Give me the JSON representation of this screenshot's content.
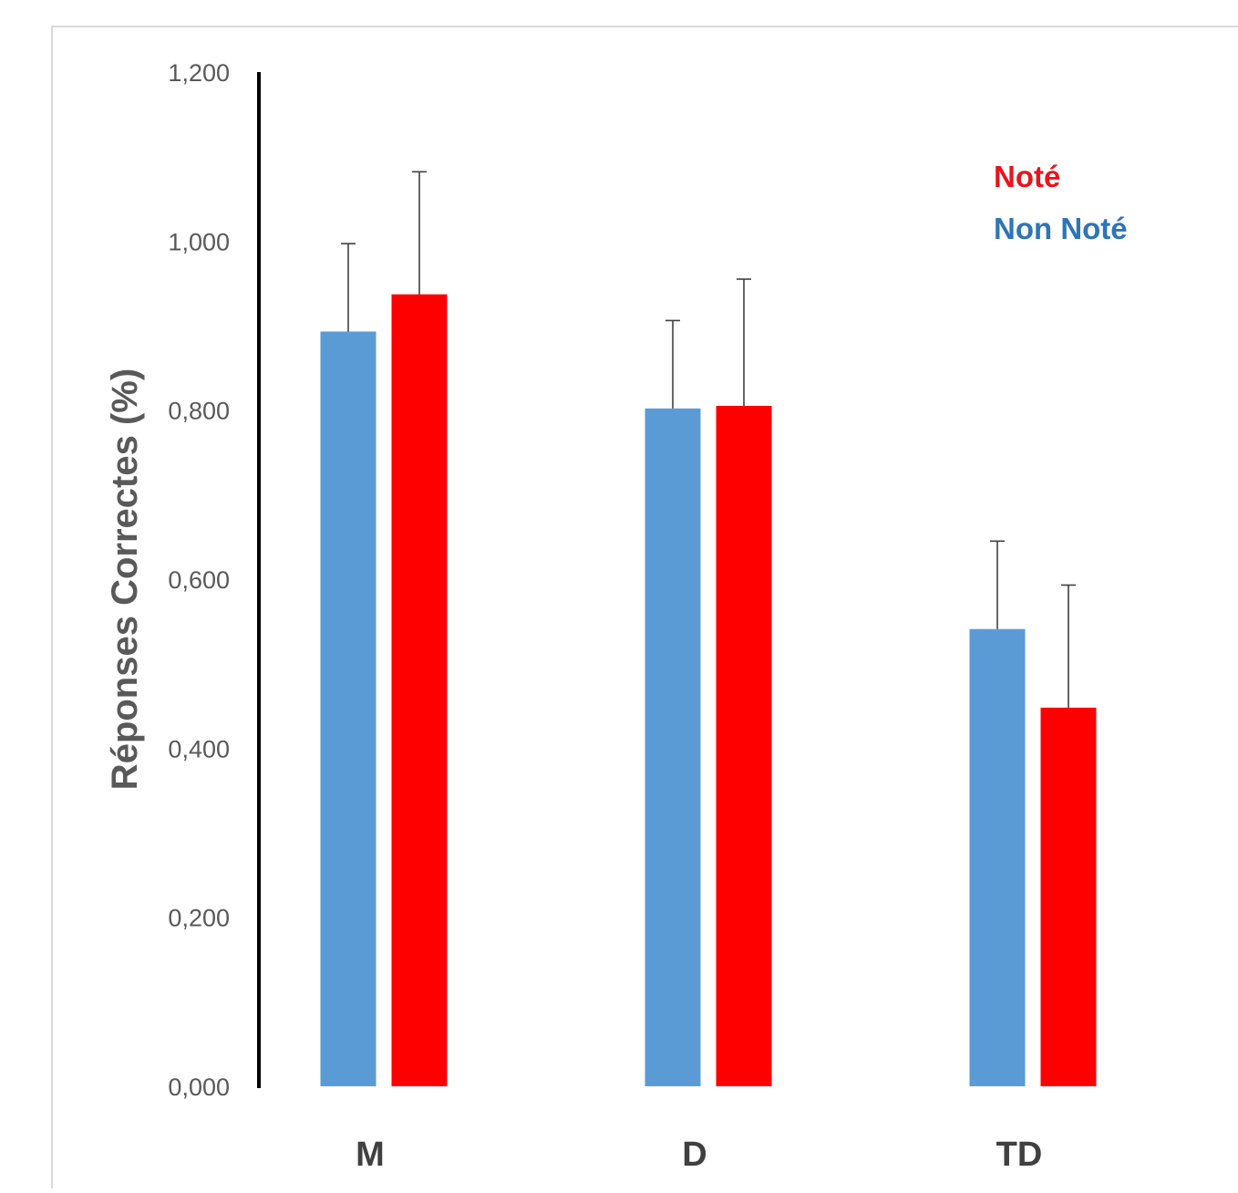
{
  "chart_data": {
    "type": "bar",
    "categories": [
      "M",
      "D",
      "TD"
    ],
    "ylabel": "Réponses Correctes (%)",
    "xlabel": "",
    "ylim": [
      0,
      1.2
    ],
    "yticks": [
      "0,000",
      "0,200",
      "0,400",
      "0,600",
      "0,800",
      "1,000",
      "1,200"
    ],
    "grid": false,
    "legend_position": "top-right",
    "series": [
      {
        "name": "Non Noté",
        "color": "#5b9bd5",
        "values": [
          0.893,
          0.802,
          0.541
        ],
        "error": [
          0.104,
          0.104,
          0.104
        ]
      },
      {
        "name": "Noté",
        "color": "#ff0000",
        "values": [
          0.937,
          0.805,
          0.448
        ],
        "error": [
          0.145,
          0.15,
          0.145
        ]
      }
    ],
    "legend_order": [
      "Noté",
      "Non Noté"
    ],
    "legend_colors": {
      "Noté": "#e8141c",
      "Non Noté": "#2e75b6"
    }
  }
}
